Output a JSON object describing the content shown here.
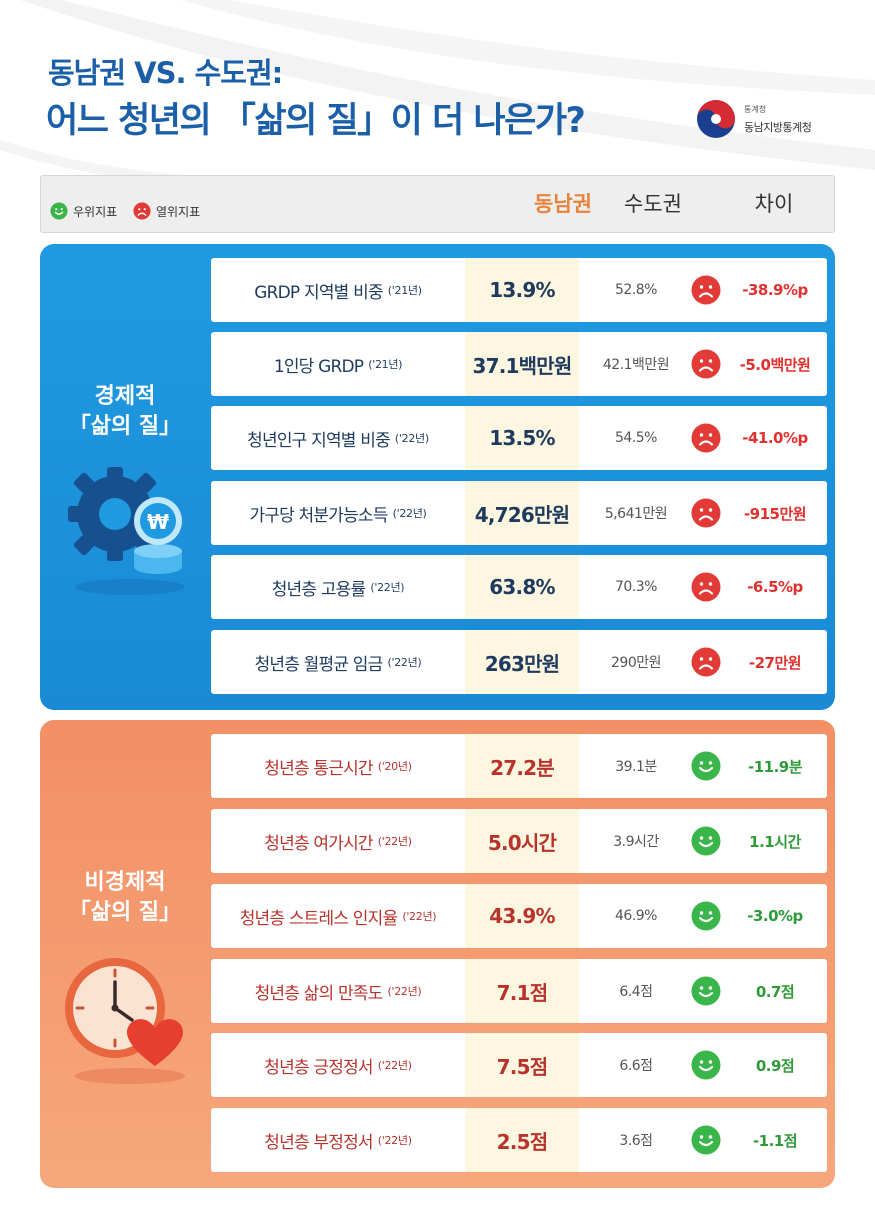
{
  "title": {
    "line1": "동남권 VS. 수도권:",
    "line2": "어느 청년의 「삶의 질」이 더 나은가?"
  },
  "org": {
    "small": "통계청",
    "name": "동남지방통계청"
  },
  "legend": {
    "good": "우위지표",
    "bad": "열위지표"
  },
  "columns": {
    "dongnam": "동남권",
    "sudo": "수도권",
    "diff": "차이"
  },
  "colors": {
    "accent": "#1b5fa8",
    "econ_bg": "#1f9ae0",
    "nonecon_bg": "#f28f65",
    "dongnam_highlight": "#e8833a",
    "bad_red": "#e0312e",
    "good_green": "#2e9a3a"
  },
  "sections": {
    "econ": {
      "title1": "경제적",
      "title2": "「삶의 질」",
      "icon": "gear-coin-icon",
      "rows": [
        {
          "label": "GRDP 지역별 비중",
          "year": "('21년)",
          "dongnam": "13.9%",
          "sudo": "52.8%",
          "diff": "-38.9%p",
          "face": "sad-face-icon"
        },
        {
          "label": "1인당 GRDP",
          "year": "('21년)",
          "dongnam": "37.1백만원",
          "sudo": "42.1백만원",
          "diff": "-5.0백만원",
          "face": "sad-face-icon"
        },
        {
          "label": "청년인구 지역별 비중",
          "year": "('22년)",
          "dongnam": "13.5%",
          "sudo": "54.5%",
          "diff": "-41.0%p",
          "face": "sad-face-icon"
        },
        {
          "label": "가구당 처분가능소득",
          "year": "('22년)",
          "dongnam": "4,726만원",
          "sudo": "5,641만원",
          "diff": "-915만원",
          "face": "sad-face-icon"
        },
        {
          "label": "청년층 고용률",
          "year": "('22년)",
          "dongnam": "63.8%",
          "sudo": "70.3%",
          "diff": "-6.5%p",
          "face": "sad-face-icon"
        },
        {
          "label": "청년층 월평균 임금",
          "year": "('22년)",
          "dongnam": "263만원",
          "sudo": "290만원",
          "diff": "-27만원",
          "face": "sad-face-icon"
        }
      ]
    },
    "nonecon": {
      "title1": "비경제적",
      "title2": "「삶의 질」",
      "icon": "clock-heart-icon",
      "rows": [
        {
          "label": "청년층 통근시간",
          "year": "('20년)",
          "dongnam": "27.2분",
          "sudo": "39.1분",
          "diff": "-11.9분",
          "face": "smile-face-icon"
        },
        {
          "label": "청년층 여가시간",
          "year": "('22년)",
          "dongnam": "5.0시간",
          "sudo": "3.9시간",
          "diff": "1.1시간",
          "face": "smile-face-icon"
        },
        {
          "label": "청년층 스트레스 인지율",
          "year": "('22년)",
          "dongnam": "43.9%",
          "sudo": "46.9%",
          "diff": "-3.0%p",
          "face": "smile-face-icon"
        },
        {
          "label": "청년층 삶의 만족도",
          "year": "('22년)",
          "dongnam": "7.1점",
          "sudo": "6.4점",
          "diff": "0.7점",
          "face": "smile-face-icon"
        },
        {
          "label": "청년층 긍정정서",
          "year": "('22년)",
          "dongnam": "7.5점",
          "sudo": "6.6점",
          "diff": "0.9점",
          "face": "smile-face-icon"
        },
        {
          "label": "청년층 부정정서",
          "year": "('22년)",
          "dongnam": "2.5점",
          "sudo": "3.6점",
          "diff": "-1.1점",
          "face": "smile-face-icon"
        }
      ]
    }
  }
}
